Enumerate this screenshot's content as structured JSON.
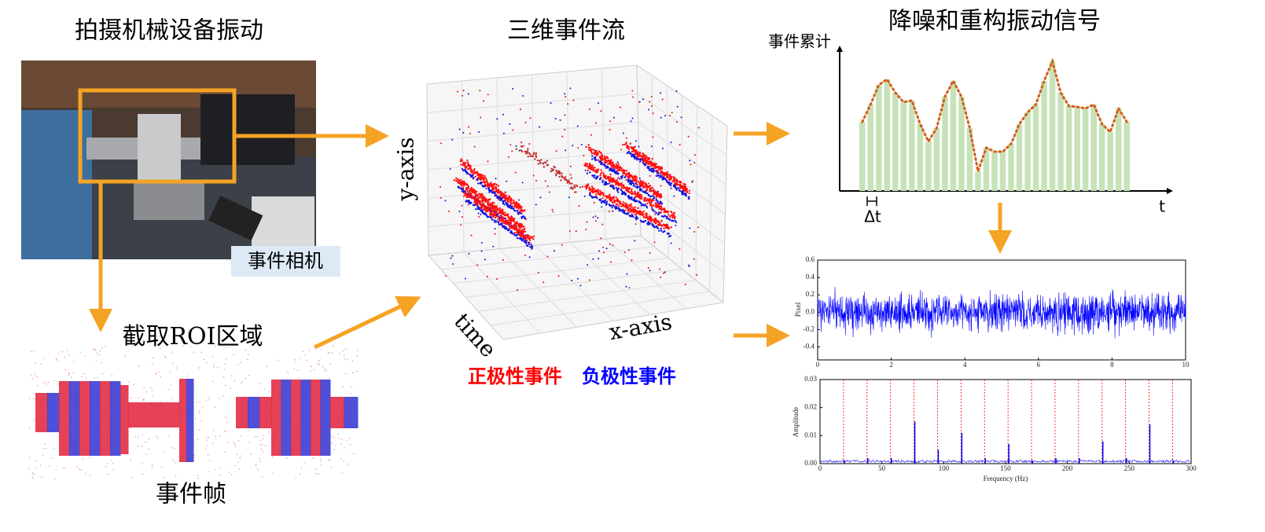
{
  "titles": {
    "capture": "拍摄机械设备振动",
    "stream": "三维事件流",
    "reconstruct": "降噪和重构振动信号"
  },
  "labels": {
    "camera": "事件相机",
    "roi": "截取ROI区域",
    "frame": "事件帧",
    "y_axis": "y-axis",
    "time": "time",
    "x_axis": "x-axis",
    "positive": "正极性事件",
    "negative": "负极性事件"
  },
  "accumulation": {
    "type": "bar",
    "ylabel": "事件累计",
    "xlabel": "t",
    "interval": "Δt",
    "ylim": [
      0,
      180
    ],
    "color": "#c6e3b8",
    "curve_color": "#d2601a",
    "values": [
      88,
      110,
      135,
      142,
      125,
      113,
      115,
      85,
      63,
      80,
      120,
      140,
      120,
      80,
      25,
      55,
      50,
      50,
      60,
      85,
      100,
      110,
      140,
      165,
      125,
      108,
      107,
      105,
      110,
      85,
      75,
      105,
      88
    ]
  },
  "signal": {
    "type": "line",
    "ylabel": "Pixel",
    "xlim": [
      0,
      10
    ],
    "ylim": [
      -0.55,
      0.6
    ],
    "xticks": [
      0,
      2,
      4,
      6,
      8,
      10
    ],
    "yticks": [
      0.6,
      0.4,
      0.2,
      {
        "value": 0,
        "label": "0.0"
      },
      -0.2,
      -0.4
    ],
    "color": "#0000ff"
  },
  "spectrum": {
    "type": "bar",
    "xlabel": "Frequency (Hz)",
    "ylabel": "Amplitude",
    "xlim": [
      0,
      300
    ],
    "ylim": [
      0,
      0.03
    ],
    "xticks": [
      0,
      50,
      100,
      150,
      200,
      250,
      300
    ],
    "yticks": [
      0.03,
      0.02,
      0.01,
      {
        "value": 0,
        "label": "0.00"
      }
    ],
    "x": [
      19,
      38,
      57,
      76,
      95,
      114,
      133,
      152,
      171,
      190,
      209,
      228,
      247,
      266,
      285
    ],
    "values": [
      0.001,
      0.002,
      0.002,
      0.015,
      0.005,
      0.011,
      0.002,
      0.007,
      0.001,
      0.002,
      0.002,
      0.008,
      0.002,
      0.014,
      0.001
    ],
    "color": "#0000ff",
    "harmonic_color": "#ff0000"
  }
}
